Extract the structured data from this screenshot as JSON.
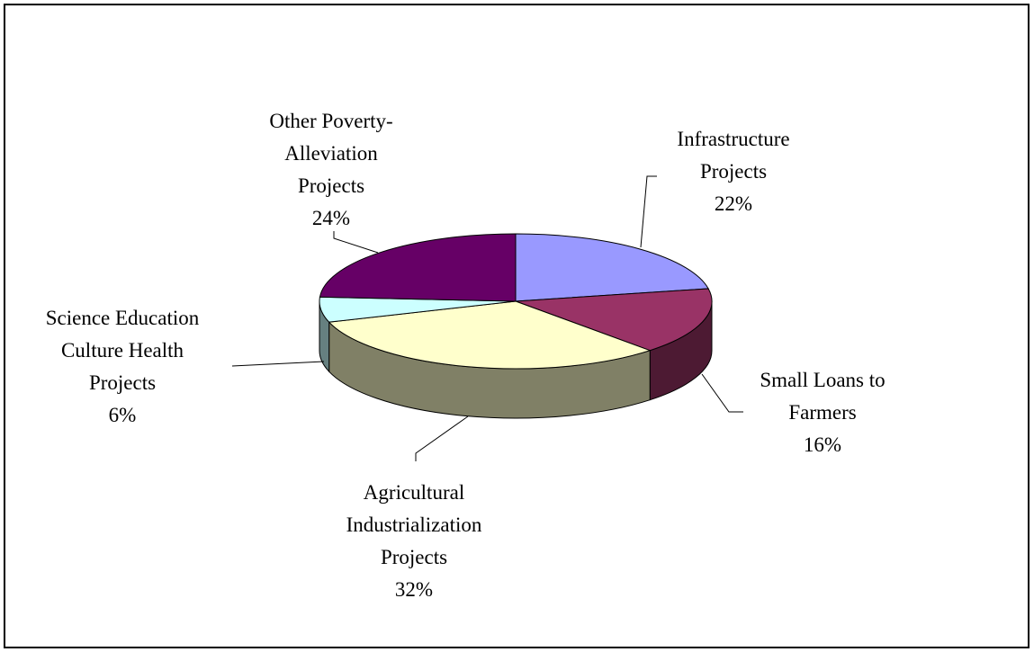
{
  "chart_data": {
    "type": "pie",
    "style": "3d-exploded-tilt",
    "title": "",
    "slices": [
      {
        "name": "infrastructure",
        "lines": [
          "Infrastructure",
          "Projects"
        ],
        "pct_label": "22%",
        "value": 22,
        "top_color": "#9999ff",
        "side_color": "#4d4d80"
      },
      {
        "name": "small-loans",
        "lines": [
          "Small Loans to",
          "Farmers"
        ],
        "pct_label": "16%",
        "value": 16,
        "top_color": "#993366",
        "side_color": "#4d1a33"
      },
      {
        "name": "agricultural",
        "lines": [
          "Agricultural",
          "Industrialization",
          "Projects"
        ],
        "pct_label": "32%",
        "value": 32,
        "top_color": "#ffffcc",
        "side_color": "#808066"
      },
      {
        "name": "science-education",
        "lines": [
          "Science Education",
          "Culture Health",
          "Projects"
        ],
        "pct_label": "6%",
        "value": 6,
        "top_color": "#ccffff",
        "side_color": "#668080"
      },
      {
        "name": "other-poverty",
        "lines": [
          "Other Poverty-",
          "Alleviation",
          "Projects"
        ],
        "pct_label": "24%",
        "value": 24,
        "top_color": "#660066",
        "side_color": "#330033"
      }
    ]
  }
}
